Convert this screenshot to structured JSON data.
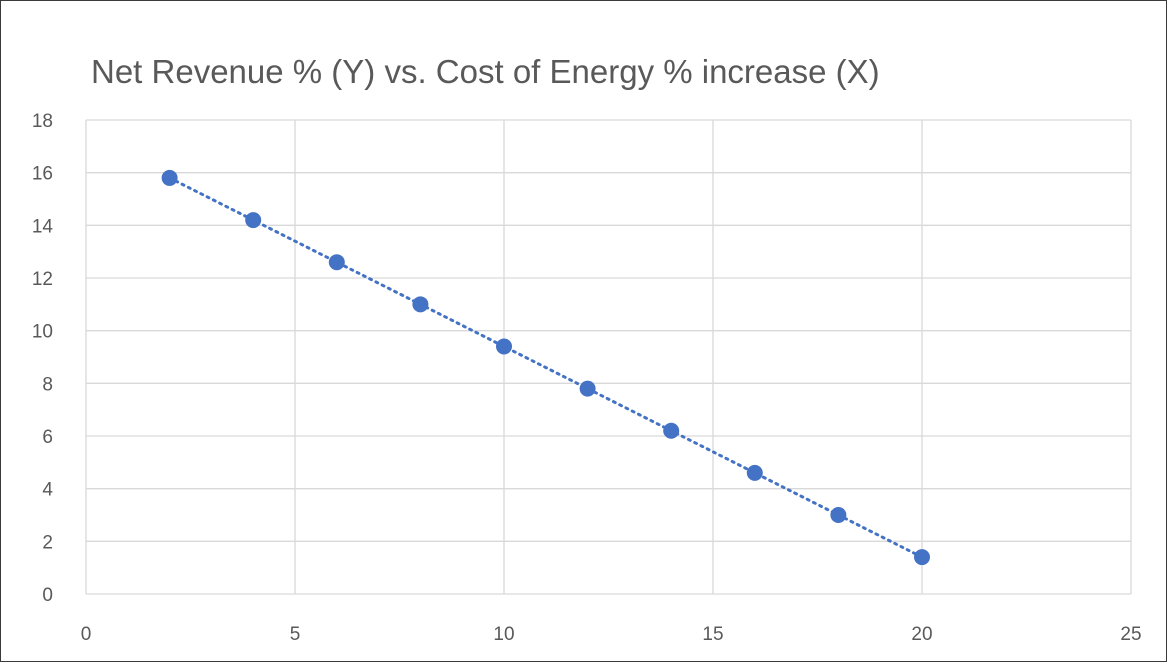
{
  "chart_data": {
    "type": "scatter",
    "title": "Net Revenue % (Y) vs. Cost of Energy % increase (X)",
    "xlabel": "",
    "ylabel": "",
    "xlim": [
      0,
      25
    ],
    "ylim": [
      0,
      18
    ],
    "x_ticks": [
      0,
      5,
      10,
      15,
      20,
      25
    ],
    "y_ticks": [
      0,
      2,
      4,
      6,
      8,
      10,
      12,
      14,
      16,
      18
    ],
    "grid": true,
    "legend": "none",
    "trendline": {
      "type": "linear",
      "style": "dotted",
      "from": [
        2,
        15.8
      ],
      "to": [
        20,
        1.4
      ]
    },
    "series": [
      {
        "x": [
          2,
          4,
          6,
          8,
          10,
          12,
          14,
          16,
          18,
          20
        ],
        "y": [
          15.8,
          14.2,
          12.6,
          11.0,
          9.4,
          7.8,
          6.2,
          4.6,
          3.0,
          1.4
        ],
        "color": "#4472c4",
        "marker": "circle"
      }
    ]
  }
}
